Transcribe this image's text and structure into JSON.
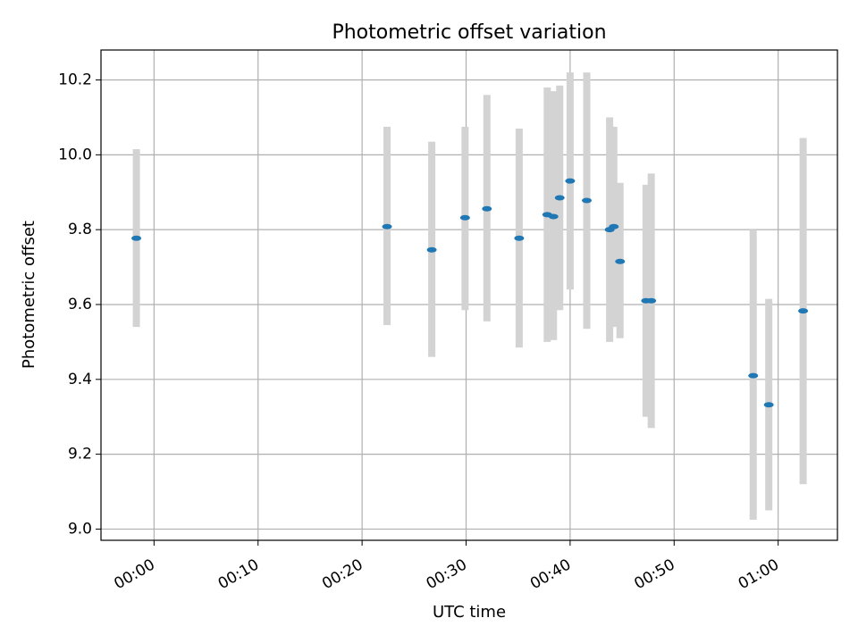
{
  "chart_data": {
    "type": "scatter",
    "title": "Photometric offset variation",
    "xlabel": "UTC time",
    "ylabel": "Photometric offset",
    "grid": true,
    "x_ticks": [
      "00:00",
      "00:10",
      "00:20",
      "00:30",
      "00:40",
      "00:50",
      "01:00"
    ],
    "x_tick_minutes": [
      0,
      10,
      20,
      30,
      40,
      50,
      60
    ],
    "xlim": [
      "23:54.9",
      "01:05.7"
    ],
    "y_ticks": [
      "9.0",
      "9.2",
      "9.4",
      "9.6",
      "9.8",
      "10.0",
      "10.2"
    ],
    "y_tick_values": [
      9.0,
      9.2,
      9.4,
      9.6,
      9.8,
      10.0,
      10.2
    ],
    "ylim": [
      8.97,
      10.28
    ],
    "marker_color": "#1f77b4",
    "errorbar_color": "#d3d3d3",
    "points": [
      {
        "t": "23:58.3",
        "y": 9.777,
        "lo": 9.54,
        "hi": 10.015
      },
      {
        "t": "00:22.4",
        "y": 9.808,
        "lo": 9.545,
        "hi": 10.075
      },
      {
        "t": "00:26.7",
        "y": 9.746,
        "lo": 9.46,
        "hi": 10.035
      },
      {
        "t": "00:29.9",
        "y": 9.832,
        "lo": 9.585,
        "hi": 10.075
      },
      {
        "t": "00:32.0",
        "y": 9.856,
        "lo": 9.555,
        "hi": 10.16
      },
      {
        "t": "00:35.1",
        "y": 9.777,
        "lo": 9.485,
        "hi": 10.07
      },
      {
        "t": "00:37.8",
        "y": 9.84,
        "lo": 9.5,
        "hi": 10.18
      },
      {
        "t": "00:38.4",
        "y": 9.835,
        "lo": 9.505,
        "hi": 10.17
      },
      {
        "t": "00:39.0",
        "y": 9.885,
        "lo": 9.585,
        "hi": 10.185
      },
      {
        "t": "00:40.0",
        "y": 9.93,
        "lo": 9.64,
        "hi": 10.22
      },
      {
        "t": "00:41.6",
        "y": 9.878,
        "lo": 9.535,
        "hi": 10.22
      },
      {
        "t": "00:43.8",
        "y": 9.8,
        "lo": 9.5,
        "hi": 10.1
      },
      {
        "t": "00:44.2",
        "y": 9.808,
        "lo": 9.54,
        "hi": 10.075
      },
      {
        "t": "00:44.8",
        "y": 9.715,
        "lo": 9.51,
        "hi": 9.925
      },
      {
        "t": "00:47.3",
        "y": 9.61,
        "lo": 9.3,
        "hi": 9.92
      },
      {
        "t": "00:47.8",
        "y": 9.61,
        "lo": 9.27,
        "hi": 9.95
      },
      {
        "t": "00:57.6",
        "y": 9.41,
        "lo": 9.025,
        "hi": 9.8
      },
      {
        "t": "00:59.1",
        "y": 9.332,
        "lo": 9.05,
        "hi": 9.615
      },
      {
        "t": "01:02.4",
        "y": 9.583,
        "lo": 9.12,
        "hi": 10.045
      }
    ]
  }
}
